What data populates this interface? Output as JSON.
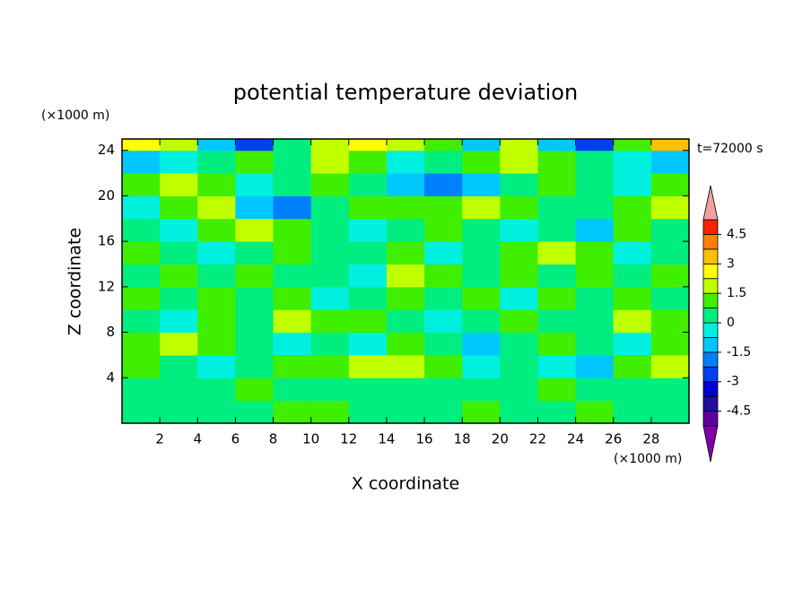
{
  "chart_data": {
    "type": "contour",
    "title": "potential temperature deviation",
    "x_label": "X coordinate",
    "y_label": "Z coordinate",
    "x_unit": "(×1000 m)",
    "y_unit": "(×1000 m)",
    "annotation": "t=72000 s",
    "xlim": [
      0,
      30
    ],
    "ylim": [
      0,
      25
    ],
    "xticks": [
      2,
      4,
      6,
      8,
      10,
      12,
      14,
      16,
      18,
      20,
      22,
      24,
      26,
      28
    ],
    "yticks": [
      4,
      8,
      12,
      16,
      20,
      24
    ],
    "xbins": [
      0,
      2,
      4,
      6,
      8,
      10,
      12,
      14,
      16,
      18,
      20,
      22,
      24,
      26,
      28,
      30
    ],
    "ybins": [
      0,
      2,
      4,
      6,
      8,
      10,
      12,
      14,
      16,
      18,
      20,
      22,
      24,
      25
    ],
    "values": [
      [
        0.3,
        0.3,
        0.5,
        0.3,
        0.9,
        0.9,
        0.3,
        0.3,
        0.3,
        0.9,
        0.3,
        0.3,
        0.9,
        0.3,
        0.3
      ],
      [
        0.3,
        0.3,
        0.3,
        0.9,
        0.3,
        0.3,
        0.3,
        0.3,
        0.3,
        0.3,
        0.3,
        0.9,
        0.3,
        0.3,
        0.3
      ],
      [
        0.9,
        0.3,
        -0.3,
        0.3,
        0.9,
        1.2,
        1.7,
        1.7,
        0.9,
        -0.3,
        0.3,
        -0.3,
        -0.9,
        0.9,
        1.7
      ],
      [
        0.9,
        1.7,
        0.9,
        0.3,
        -0.3,
        0.3,
        -0.3,
        0.9,
        0.3,
        -0.9,
        0.3,
        0.9,
        0.3,
        -0.3,
        0.9
      ],
      [
        0.3,
        -0.3,
        0.9,
        0.3,
        1.7,
        1.2,
        0.9,
        0.3,
        -0.3,
        0.3,
        0.9,
        0.3,
        0.3,
        1.7,
        0.9
      ],
      [
        0.9,
        0.3,
        0.9,
        0.3,
        0.9,
        -0.3,
        0.3,
        0.9,
        0.3,
        0.9,
        -0.3,
        0.9,
        0.3,
        0.9,
        0.3
      ],
      [
        0.3,
        0.9,
        0.3,
        0.9,
        0.3,
        0.3,
        -0.3,
        1.7,
        0.9,
        0.3,
        0.9,
        0.3,
        0.9,
        0.3,
        0.9
      ],
      [
        0.9,
        0.3,
        -0.3,
        0.3,
        0.9,
        0.3,
        0.3,
        0.9,
        -0.3,
        0.3,
        0.9,
        1.7,
        0.9,
        -0.3,
        0.3
      ],
      [
        0.3,
        -0.3,
        0.9,
        1.7,
        0.9,
        0.3,
        -0.3,
        0.3,
        0.9,
        0.3,
        -0.3,
        0.3,
        -0.9,
        0.9,
        0.3
      ],
      [
        -0.3,
        0.9,
        1.7,
        -0.9,
        -1.7,
        0.3,
        0.9,
        0.9,
        1.2,
        1.7,
        0.9,
        0.3,
        0.3,
        0.9,
        1.7
      ],
      [
        1.2,
        2.0,
        0.9,
        -0.3,
        0.3,
        0.9,
        0.3,
        -0.9,
        -1.9,
        -0.9,
        0.3,
        0.9,
        0.3,
        -0.3,
        0.9
      ],
      [
        -0.9,
        -0.3,
        0.3,
        0.9,
        0.3,
        1.7,
        0.9,
        -0.3,
        0.3,
        0.9,
        1.7,
        0.9,
        0.3,
        -0.3,
        -0.9
      ],
      [
        2.5,
        1.7,
        -1.5,
        -2.6,
        0.3,
        1.7,
        2.5,
        1.7,
        0.9,
        -0.9,
        1.7,
        -1.5,
        -2.4,
        0.9,
        3.3
      ]
    ],
    "levels": [
      -5.25,
      -4.5,
      -3.75,
      -3,
      -2.25,
      -1.5,
      -0.75,
      0,
      0.75,
      1.5,
      2.25,
      3,
      3.75,
      4.5,
      5.25
    ],
    "colors": [
      "#6000a0",
      "#2010a0",
      "#0000d0",
      "#0040f0",
      "#0080ff",
      "#00c8ff",
      "#00f0e0",
      "#00ee80",
      "#40ee00",
      "#c0ff00",
      "#ffff00",
      "#ffc000",
      "#ff8000",
      "#ff2000"
    ],
    "under_color": "#8000a8",
    "over_color": "#f4a0a0",
    "colorbar_ticks": [
      -4.5,
      -3,
      -1.5,
      0,
      1.5,
      3,
      4.5
    ]
  }
}
